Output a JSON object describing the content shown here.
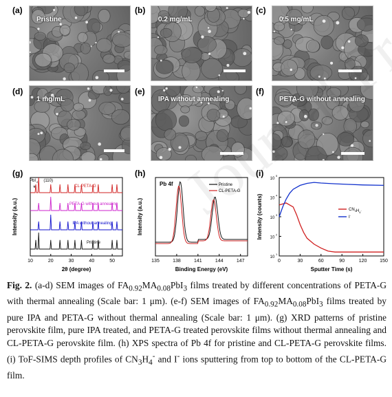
{
  "sem_panels": [
    {
      "letter": "(a)",
      "label": "Pristine"
    },
    {
      "letter": "(b)",
      "label": "0.2 mg/mL"
    },
    {
      "letter": "(c)",
      "label": "0.5 mg/mL"
    },
    {
      "letter": "(d)",
      "label": "1 mg/mL"
    },
    {
      "letter": "(e)",
      "label": "IPA without annealing"
    },
    {
      "letter": "(f)",
      "label": "PETA-G without annealing"
    }
  ],
  "watermark": "Journal Pre-proof",
  "chart_data": [
    {
      "panel": "(g)",
      "type": "line",
      "xlabel": "2θ (degree)",
      "ylabel": "Intensity (a.u.)",
      "xlim": [
        10,
        55
      ],
      "xticks": [
        "10",
        "20",
        "30",
        "40",
        "50"
      ],
      "peak_labels": {
        "pbi2": "PbI",
        "pbi2_sub": "2",
        "perov": "(110)",
        "star": "*"
      },
      "series": [
        {
          "name": "CL-PETA-G",
          "color": "#d02020",
          "peaks": [
            12.7,
            14.1,
            20.0,
            24.5,
            28.4,
            31.8,
            35.0,
            40.6,
            43.2,
            50.0,
            52.3
          ]
        },
        {
          "name": "PETA-G without annealing",
          "color": "#cc22cc",
          "peaks": [
            14.1,
            20.0,
            24.5,
            28.4,
            31.8,
            35.0,
            40.6,
            43.2,
            50.0,
            52.3
          ]
        },
        {
          "name": "IPA without annealing",
          "color": "#1010cc",
          "peaks": [
            14.1,
            20.0,
            24.5,
            28.4,
            31.8,
            35.0,
            40.6,
            43.2,
            50.0,
            52.3
          ]
        },
        {
          "name": "Pristine",
          "color": "#111111",
          "peaks": [
            12.7,
            14.1,
            20.0,
            24.5,
            28.4,
            31.8,
            35.0,
            40.6,
            43.2,
            50.0,
            52.3
          ]
        }
      ]
    },
    {
      "panel": "(h)",
      "type": "line",
      "title": "Pb 4f",
      "xlabel": "Binding Energy (eV)",
      "ylabel": "Intensity (a.u.)",
      "xlim": [
        135,
        148
      ],
      "xticks": [
        "135",
        "138",
        "141",
        "144",
        "147"
      ],
      "series": [
        {
          "name": "Pristine",
          "color": "#111111",
          "peaks": [
            138.5,
            143.4
          ]
        },
        {
          "name": "CL-PETA-G",
          "color": "#d02020",
          "peaks": [
            138.3,
            143.2
          ]
        }
      ]
    },
    {
      "panel": "(i)",
      "type": "line",
      "xlabel": "Sputter Time (s)",
      "ylabel": "Intensity (counts)",
      "xlim": [
        0,
        150
      ],
      "ylim_log": [
        1,
        5
      ],
      "xticks": [
        "0",
        "30",
        "60",
        "90",
        "120",
        "150"
      ],
      "yticks": [
        "10",
        "10",
        "10",
        "10",
        "10"
      ],
      "yticks_exp": [
        "1",
        "2",
        "3",
        "4",
        "5"
      ],
      "series": [
        {
          "name": "CN3H4",
          "color": "#d02020",
          "x": [
            0,
            10,
            20,
            25,
            30,
            35,
            40,
            50,
            60,
            70,
            80,
            90,
            100,
            110,
            120,
            130,
            140,
            150
          ],
          "logy": [
            3.6,
            3.7,
            3.5,
            3.1,
            2.6,
            2.2,
            1.9,
            1.6,
            1.4,
            1.25,
            1.2,
            1.2,
            1.2,
            1.2,
            1.2,
            1.2,
            1.2,
            1.2
          ]
        },
        {
          "name": "I-",
          "color": "#1030cc",
          "x": [
            0,
            5,
            10,
            15,
            20,
            30,
            40,
            50,
            60,
            80,
            100,
            120,
            150
          ],
          "logy": [
            3.0,
            3.5,
            3.9,
            4.2,
            4.4,
            4.6,
            4.7,
            4.75,
            4.72,
            4.68,
            4.65,
            4.62,
            4.6
          ]
        }
      ],
      "legend": [
        {
          "label": "CN",
          "sub1": "3",
          "mid": "H",
          "sub2": "4",
          "sup": "-",
          "color": "#d02020"
        },
        {
          "label": "I",
          "sup": "-",
          "color": "#1030cc"
        }
      ]
    }
  ],
  "caption": {
    "fig": "Fig. 2.",
    "part1": " (a-d) SEM images of FA",
    "s1": "0.92",
    "part2": "MA",
    "s2": "0.08",
    "part3": "PbI",
    "s3": "3",
    "part4": " films treated by different concentrations of PETA-G with thermal annealing (Scale bar: 1 μm). (e-f) SEM images of FA",
    "s4": "0.92",
    "part5": "MA",
    "s5": "0.08",
    "part6": "PbI",
    "s6": "3",
    "part7": " films treated by pure IPA and PETA-G without thermal annealing (Scale bar: 1 μm). (g) XRD patterns of pristine perovskite film, pure IPA treated, and PETA-G treated perovskite films without thermal annealing and CL-PETA-G perovskite film. (h) XPS spectra of Pb 4f for pristine and CL-PETA-G perovskite films. (i) ToF-SIMS depth profiles of CN",
    "s7": "3",
    "part8": "H",
    "s8": "4",
    "sup8": "-",
    "part9": " and I",
    "sup9": "-",
    "part10": " ions sputtering from top to bottom of the CL-PETA-G film."
  }
}
